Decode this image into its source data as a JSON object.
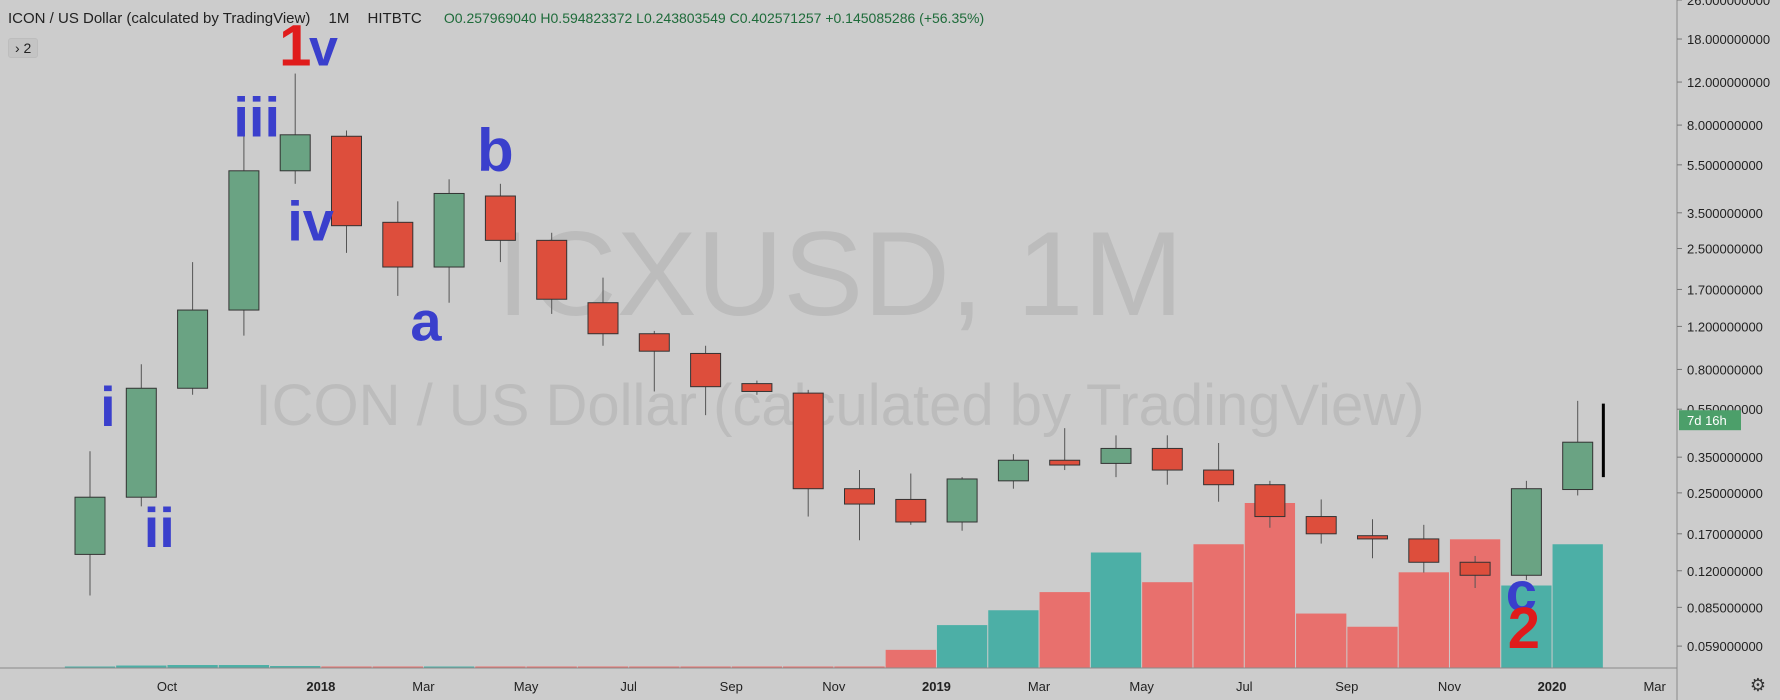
{
  "header": {
    "symbol": "ICON / US Dollar (calculated by TradingView)",
    "interval": "1M",
    "exchange": "HITBTC",
    "ohlc": "O0.257969040  H0.594823372  L0.243803549  C0.402571257  +0.145085286 (+56.35%)"
  },
  "indicator_toggle": "› 2",
  "watermark": {
    "big": "ICXUSD, 1M",
    "small": "ICON / US Dollar (calculated by TradingView)"
  },
  "price_badge": {
    "label": "7d 16h",
    "color": "#4c9f6a"
  },
  "chart_data": {
    "type": "candlestick",
    "scale": "log",
    "ylim": [
      0.048,
      26
    ],
    "colors": {
      "up": "#6aa383",
      "down": "#dd4e3c",
      "vol_up": "#4cafa6",
      "vol_down": "#e8706d",
      "wave_blue": "#3a3fcc",
      "wave_red": "#e01b1b"
    },
    "y_ticks": [
      "26.000000000",
      "18.000000000",
      "12.000000000",
      "8.000000000",
      "5.500000000",
      "3.500000000",
      "2.500000000",
      "1.700000000",
      "1.200000000",
      "0.800000000",
      "0.550000000",
      "0.350000000",
      "0.250000000",
      "0.170000000",
      "0.120000000",
      "0.085000000",
      "0.059000000"
    ],
    "x_ticks": [
      {
        "label": "Oct",
        "i": 1.5,
        "bold": false
      },
      {
        "label": "2018",
        "i": 4.5,
        "bold": true
      },
      {
        "label": "Mar",
        "i": 6.5,
        "bold": false
      },
      {
        "label": "May",
        "i": 8.5,
        "bold": false
      },
      {
        "label": "Jul",
        "i": 10.5,
        "bold": false
      },
      {
        "label": "Sep",
        "i": 12.5,
        "bold": false
      },
      {
        "label": "Nov",
        "i": 14.5,
        "bold": false
      },
      {
        "label": "2019",
        "i": 16.5,
        "bold": true
      },
      {
        "label": "Mar",
        "i": 18.5,
        "bold": false
      },
      {
        "label": "May",
        "i": 20.5,
        "bold": false
      },
      {
        "label": "Jul",
        "i": 22.5,
        "bold": false
      },
      {
        "label": "Sep",
        "i": 24.5,
        "bold": false
      },
      {
        "label": "Nov",
        "i": 26.5,
        "bold": false
      },
      {
        "label": "2020",
        "i": 28.5,
        "bold": true
      },
      {
        "label": "Mar",
        "i": 30.5,
        "bold": false
      }
    ],
    "candles": [
      {
        "o": 0.14,
        "h": 0.37,
        "l": 0.095,
        "c": 0.24
      },
      {
        "o": 0.24,
        "h": 0.84,
        "l": 0.22,
        "c": 0.67
      },
      {
        "o": 0.67,
        "h": 2.2,
        "l": 0.63,
        "c": 1.4
      },
      {
        "o": 1.4,
        "h": 7.5,
        "l": 1.1,
        "c": 5.2
      },
      {
        "o": 5.2,
        "h": 13.0,
        "l": 4.6,
        "c": 7.3
      },
      {
        "o": 7.2,
        "h": 7.6,
        "l": 2.4,
        "c": 3.1
      },
      {
        "o": 3.2,
        "h": 3.9,
        "l": 1.6,
        "c": 2.1
      },
      {
        "o": 2.1,
        "h": 4.8,
        "l": 1.5,
        "c": 4.2
      },
      {
        "o": 4.1,
        "h": 4.6,
        "l": 2.2,
        "c": 2.7
      },
      {
        "o": 2.7,
        "h": 2.9,
        "l": 1.35,
        "c": 1.55
      },
      {
        "o": 1.5,
        "h": 1.9,
        "l": 1.0,
        "c": 1.12
      },
      {
        "o": 1.12,
        "h": 1.15,
        "l": 0.65,
        "c": 0.95
      },
      {
        "o": 0.93,
        "h": 1.0,
        "l": 0.52,
        "c": 0.68
      },
      {
        "o": 0.7,
        "h": 0.72,
        "l": 0.63,
        "c": 0.65
      },
      {
        "o": 0.64,
        "h": 0.66,
        "l": 0.2,
        "c": 0.26
      },
      {
        "o": 0.26,
        "h": 0.31,
        "l": 0.16,
        "c": 0.225
      },
      {
        "o": 0.235,
        "h": 0.3,
        "l": 0.185,
        "c": 0.19
      },
      {
        "o": 0.19,
        "h": 0.29,
        "l": 0.175,
        "c": 0.285
      },
      {
        "o": 0.28,
        "h": 0.36,
        "l": 0.26,
        "c": 0.34
      },
      {
        "o": 0.34,
        "h": 0.46,
        "l": 0.31,
        "c": 0.325
      },
      {
        "o": 0.33,
        "h": 0.43,
        "l": 0.29,
        "c": 0.38
      },
      {
        "o": 0.38,
        "h": 0.43,
        "l": 0.27,
        "c": 0.31
      },
      {
        "o": 0.31,
        "h": 0.4,
        "l": 0.23,
        "c": 0.27
      },
      {
        "o": 0.27,
        "h": 0.28,
        "l": 0.18,
        "c": 0.2
      },
      {
        "o": 0.2,
        "h": 0.235,
        "l": 0.155,
        "c": 0.17
      },
      {
        "o": 0.167,
        "h": 0.195,
        "l": 0.135,
        "c": 0.162
      },
      {
        "o": 0.162,
        "h": 0.185,
        "l": 0.118,
        "c": 0.13
      },
      {
        "o": 0.13,
        "h": 0.138,
        "l": 0.102,
        "c": 0.115
      },
      {
        "o": 0.115,
        "h": 0.28,
        "l": 0.11,
        "c": 0.26
      },
      {
        "o": 0.258,
        "h": 0.595,
        "l": 0.244,
        "c": 0.403
      }
    ],
    "volume": [
      0.008,
      0.015,
      0.018,
      0.018,
      0.012,
      0.004,
      0.004,
      0.004,
      0.004,
      0.004,
      0.004,
      0.004,
      0.004,
      0.004,
      0.006,
      0.006,
      0.11,
      0.26,
      0.35,
      0.46,
      0.7,
      0.52,
      0.75,
      1.0,
      0.33,
      0.25,
      0.58,
      0.78,
      0.5,
      0.75
    ],
    "annotations": [
      {
        "text": "1",
        "i": 4.0,
        "price": 14.0,
        "color": "red",
        "size": 58
      },
      {
        "text": "v",
        "i": 4.55,
        "price": 14.0,
        "color": "blue",
        "size": 52
      },
      {
        "text": "iii",
        "i": 3.25,
        "price": 7.2,
        "color": "blue",
        "size": 56
      },
      {
        "text": "iv",
        "i": 4.3,
        "price": 2.7,
        "color": "blue",
        "size": 56
      },
      {
        "text": "i",
        "i": 0.35,
        "price": 0.47,
        "color": "blue",
        "size": 56
      },
      {
        "text": "ii",
        "i": 1.35,
        "price": 0.15,
        "color": "blue",
        "size": 56
      },
      {
        "text": "a",
        "i": 6.55,
        "price": 1.05,
        "color": "blue",
        "size": 56
      },
      {
        "text": "b",
        "i": 7.9,
        "price": 5.2,
        "color": "blue",
        "size": 60
      },
      {
        "text": "c",
        "i": 27.9,
        "price": 0.082,
        "color": "blue",
        "size": 56
      },
      {
        "text": "2",
        "i": 27.95,
        "price": 0.058,
        "color": "red",
        "size": 58
      }
    ],
    "marker_line": {
      "i": 29.5,
      "from": 0.29,
      "to": 0.58
    }
  }
}
